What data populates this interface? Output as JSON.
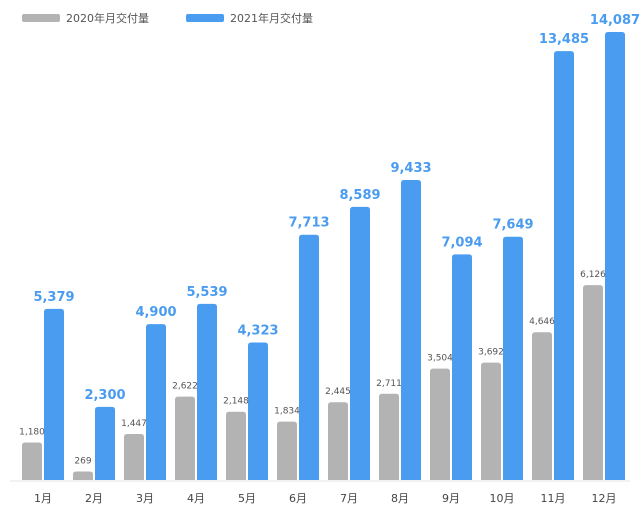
{
  "chart_data": {
    "type": "bar",
    "title": "",
    "xlabel": "",
    "ylabel": "",
    "categories": [
      "1月",
      "2月",
      "3月",
      "4月",
      "5月",
      "6月",
      "7月",
      "8月",
      "9月",
      "10月",
      "11月",
      "12月"
    ],
    "series": [
      {
        "name": "2020年月交付量",
        "color": "#b3b3b3",
        "values": [
          1180,
          269,
          1447,
          2622,
          2148,
          1834,
          2445,
          2711,
          3504,
          3692,
          4646,
          6126
        ],
        "labels": [
          "1,180",
          "269",
          "1,447",
          "2,622",
          "2,148",
          "1,834",
          "2,445",
          "2,711",
          "3,504",
          "3,692",
          "4,646",
          "6,126"
        ]
      },
      {
        "name": "2021年月交付量",
        "color": "#4a9cf0",
        "values": [
          5379,
          2300,
          4900,
          5539,
          4323,
          7713,
          8589,
          9433,
          7094,
          7649,
          13485,
          14087
        ],
        "labels": [
          "5,379",
          "2,300",
          "4,900",
          "5,539",
          "4,323",
          "7,713",
          "8,589",
          "9,433",
          "7,094",
          "7,649",
          "13,485",
          "14,087"
        ]
      }
    ],
    "ylim": [
      0,
      14087
    ],
    "grid": false,
    "legend_position": "top-left",
    "data_labels": true
  }
}
